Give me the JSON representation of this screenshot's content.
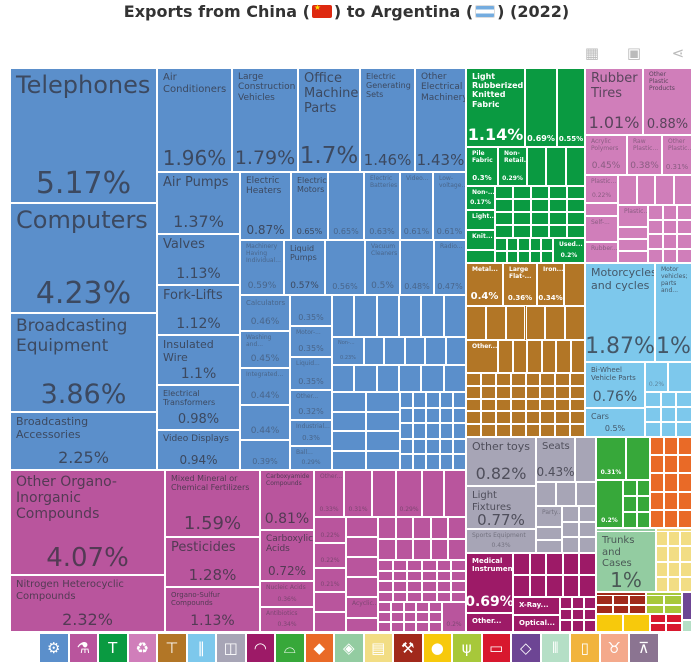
{
  "title": {
    "prefix": "Exports from China (",
    "middle": ") to Argentina (",
    "suffix": ") (2022)"
  },
  "toolbar": [
    {
      "icon": "table-icon",
      "glyph": "▦"
    },
    {
      "icon": "image-icon",
      "glyph": "▣"
    },
    {
      "icon": "share-icon",
      "glyph": "⋖"
    }
  ],
  "chart_data": {
    "type": "treemap",
    "title": "Exports from China to Argentina (2022)",
    "unit": "% of total exports",
    "sectors": [
      {
        "color": "#5b8fcb",
        "items": [
          {
            "label": "Telephones",
            "share": "5.17%"
          },
          {
            "label": "Computers",
            "share": "4.23%"
          },
          {
            "label": "Broadcasting Equipment",
            "share": "3.86%"
          },
          {
            "label": "Broadcasting Accessories",
            "share": "2.25%"
          },
          {
            "label": "Air Conditioners",
            "share": "1.96%"
          },
          {
            "label": "Large Construction Vehicles",
            "share": "1.79%"
          },
          {
            "label": "Office Machine Parts",
            "share": "1.7%"
          },
          {
            "label": "Electric Generating Sets",
            "share": "1.46%"
          },
          {
            "label": "Other Electrical Machinery",
            "share": "1.43%"
          },
          {
            "label": "Air Pumps",
            "share": "1.37%"
          },
          {
            "label": "Valves",
            "share": "1.13%"
          },
          {
            "label": "Fork-Lifts",
            "share": "1.12%"
          },
          {
            "label": "Insulated Wire",
            "share": "1.1%"
          },
          {
            "label": "Electrical Transformers",
            "share": "0.98%"
          },
          {
            "label": "Video Displays",
            "share": "0.94%"
          },
          {
            "label": "Electric Heaters",
            "share": "0.87%"
          },
          {
            "label": "Electric Motors",
            "share": "0.65%"
          },
          {
            "label": "",
            "share": "0.65%"
          },
          {
            "label": "Electric Batteries",
            "share": "0.63%"
          },
          {
            "label": "Video...",
            "share": "0.61%"
          },
          {
            "label": "Low-voltage...",
            "share": "0.61%"
          },
          {
            "label": "Machinery Having Individual...",
            "share": "0.59%"
          },
          {
            "label": "Liquid Pumps",
            "share": "0.57%"
          },
          {
            "label": "",
            "share": "0.56%"
          },
          {
            "label": "Vacuum Cleaners",
            "share": "0.5%"
          },
          {
            "label": "",
            "share": "0.48%"
          },
          {
            "label": "Radio...",
            "share": "0.47%"
          },
          {
            "label": "Calculators",
            "share": "0.46%"
          },
          {
            "label": "Washing and...",
            "share": "0.45%"
          },
          {
            "label": "Integrated...",
            "share": "0.44%"
          },
          {
            "label": "",
            "share": "0.44%"
          },
          {
            "label": "",
            "share": "0.39%"
          },
          {
            "label": "",
            "share": "0.35%"
          },
          {
            "label": "Motor-...",
            "share": "0.35%"
          },
          {
            "label": "Liquid...",
            "share": "0.35%"
          },
          {
            "label": "Other...",
            "share": "0.32%"
          },
          {
            "label": "Industrial...",
            "share": "0.3%"
          },
          {
            "label": "Ball...",
            "share": "0.29%"
          },
          {
            "label": "Non-...",
            "share": "0.23%"
          }
        ]
      },
      {
        "color": "#b9559d",
        "items": [
          {
            "label": "Other Organo-Inorganic Compounds",
            "share": "4.07%"
          },
          {
            "label": "Nitrogen Heterocyclic Compounds",
            "share": "2.32%"
          },
          {
            "label": "Mixed Mineral or Chemical Fertilizers",
            "share": "1.59%"
          },
          {
            "label": "Pesticides",
            "share": "1.28%"
          },
          {
            "label": "Organo-Sulfur Compounds",
            "share": "1.13%"
          },
          {
            "label": "Carboxyamide Compounds",
            "share": "0.81%"
          },
          {
            "label": "Carboxylic Acids",
            "share": "0.72%"
          },
          {
            "label": "Nucleic Acids",
            "share": "0.36%"
          },
          {
            "label": "Antibiotics",
            "share": "0.34%"
          },
          {
            "label": "Other...",
            "share": "0.33%"
          },
          {
            "label": "",
            "share": "0.31%"
          },
          {
            "label": "",
            "share": "0.29%"
          },
          {
            "label": "",
            "share": "0.22%"
          },
          {
            "label": "",
            "share": "0.22%"
          },
          {
            "label": "",
            "share": "0.21%"
          },
          {
            "label": "Acyclic...",
            "share": ""
          },
          {
            "label": "",
            "share": "0.2%"
          }
        ]
      },
      {
        "color": "#0a9a41",
        "light": true,
        "items": [
          {
            "label": "Light Rubberized Knitted Fabric",
            "share": "1.14%"
          },
          {
            "label": "",
            "share": "0.69%"
          },
          {
            "label": "",
            "share": "0.55%"
          },
          {
            "label": "Pile Fabric",
            "share": "0.3%"
          },
          {
            "label": "Non-Retail...",
            "share": "0.29%"
          },
          {
            "label": "Non-...",
            "share": "0.17%"
          },
          {
            "label": "Light...",
            "share": ""
          },
          {
            "label": "Knit...",
            "share": ""
          },
          {
            "label": "Used...",
            "share": "0.2%"
          }
        ]
      },
      {
        "color": "#d07eba",
        "items": [
          {
            "label": "Rubber Tires",
            "share": "1.01%"
          },
          {
            "label": "Other Plastic Products",
            "share": "0.88%"
          },
          {
            "label": "Acrylic Polymers",
            "share": "0.45%"
          },
          {
            "label": "Raw Plastic...",
            "share": "0.38%"
          },
          {
            "label": "Other Plastic...",
            "share": "0.31%"
          },
          {
            "label": "Plastic...",
            "share": "0.22%"
          },
          {
            "label": "Self-...",
            "share": ""
          },
          {
            "label": "Rubber...",
            "share": ""
          },
          {
            "label": "Plastic...",
            "share": ""
          }
        ]
      },
      {
        "color": "#b27626",
        "light": true,
        "items": [
          {
            "label": "Metal...",
            "share": "0.4%"
          },
          {
            "label": "Large Flat-...",
            "share": "0.36%"
          },
          {
            "label": "Iron...",
            "share": "0.34%"
          },
          {
            "label": "Other...",
            "share": ""
          }
        ]
      },
      {
        "color": "#7dc8ec",
        "items": [
          {
            "label": "Motorcycles and cycles",
            "share": "1.87%"
          },
          {
            "label": "Motor vehicles; parts and...",
            "share": "1%"
          },
          {
            "label": "Bi-Wheel Vehicle Parts",
            "share": "0.76%"
          },
          {
            "label": "Cars",
            "share": "0.5%"
          },
          {
            "label": "",
            "share": "0.2%"
          }
        ]
      },
      {
        "color": "#a7a5b6",
        "items": [
          {
            "label": "Other toys",
            "share": "0.82%"
          },
          {
            "label": "Seats",
            "share": "0.43%"
          },
          {
            "label": "Light Fixtures",
            "share": "0.77%"
          },
          {
            "label": "Sports Equipment",
            "share": "0.43%"
          },
          {
            "label": "Party...",
            "share": ""
          }
        ]
      },
      {
        "color": "#9d1a67",
        "light": true,
        "items": [
          {
            "label": "Medical Instruments",
            "share": "0.69%"
          },
          {
            "label": "Other...",
            "share": ""
          },
          {
            "label": "X-Ray...",
            "share": ""
          },
          {
            "label": "Optical...",
            "share": ""
          }
        ]
      },
      {
        "color": "#37a83a",
        "light": true,
        "items": [
          {
            "label": "",
            "share": "0.31%"
          },
          {
            "label": "",
            "share": "0.2%"
          }
        ]
      },
      {
        "color": "#e96a27",
        "items": []
      },
      {
        "color": "#93cca1",
        "items": [
          {
            "label": "Trunks and Cases",
            "share": "1%"
          }
        ]
      },
      {
        "color": "#f2dd84",
        "items": []
      },
      {
        "color": "#a1291b",
        "items": []
      },
      {
        "color": "#f7c90c",
        "items": []
      },
      {
        "color": "#a7c83a",
        "items": []
      },
      {
        "color": "#d8182e",
        "items": []
      },
      {
        "color": "#6d4594",
        "items": []
      },
      {
        "color": "#b5dfc6",
        "items": []
      }
    ]
  },
  "legend_icons": [
    {
      "icon": "machinery-gear-icon",
      "color": "#5b8fcb",
      "glyph": "⚙"
    },
    {
      "icon": "chemicals-flask-icon",
      "color": "#b9559d",
      "glyph": "⚗"
    },
    {
      "icon": "textiles-shirt-icon",
      "color": "#0a9a41",
      "glyph": "T"
    },
    {
      "icon": "plastics-recycle-icon",
      "color": "#d07eba",
      "glyph": "♻"
    },
    {
      "icon": "metals-anvil-icon",
      "color": "#b27626",
      "glyph": "⊤"
    },
    {
      "icon": "transportation-road-icon",
      "color": "#7dc8ec",
      "glyph": "∥"
    },
    {
      "icon": "miscellaneous-box-icon",
      "color": "#a7a5b6",
      "glyph": "◫"
    },
    {
      "icon": "instruments-gauge-icon",
      "color": "#9d1a67",
      "glyph": "◠"
    },
    {
      "icon": "footwear-shoe-icon",
      "color": "#37a83a",
      "glyph": "⌓"
    },
    {
      "icon": "stone-icon",
      "color": "#e96a27",
      "glyph": "◆"
    },
    {
      "icon": "animal-hides-icon",
      "color": "#93cca1",
      "glyph": "◈"
    },
    {
      "icon": "paper-scroll-icon",
      "color": "#f2dd84",
      "glyph": "▤"
    },
    {
      "icon": "mineral-pickaxe-icon",
      "color": "#a1291b",
      "glyph": "⚒"
    },
    {
      "icon": "foodstuffs-icon",
      "color": "#f7c90c",
      "glyph": "●"
    },
    {
      "icon": "vegetable-wheat-icon",
      "color": "#a7c83a",
      "glyph": "ψ"
    },
    {
      "icon": "wood-log-icon",
      "color": "#d8182e",
      "glyph": "▭"
    },
    {
      "icon": "precious-metals-diamond-icon",
      "color": "#6d4594",
      "glyph": "◇"
    },
    {
      "icon": "weapons-bullets-icon",
      "color": "#b5dfc6",
      "glyph": "⫴"
    },
    {
      "icon": "oils-bottle-icon",
      "color": "#f1b43e",
      "glyph": "▯"
    },
    {
      "icon": "animal-cow-icon",
      "color": "#f4a98b",
      "glyph": "♉"
    },
    {
      "icon": "arts-easel-icon",
      "color": "#8b7491",
      "glyph": "⊼"
    }
  ]
}
